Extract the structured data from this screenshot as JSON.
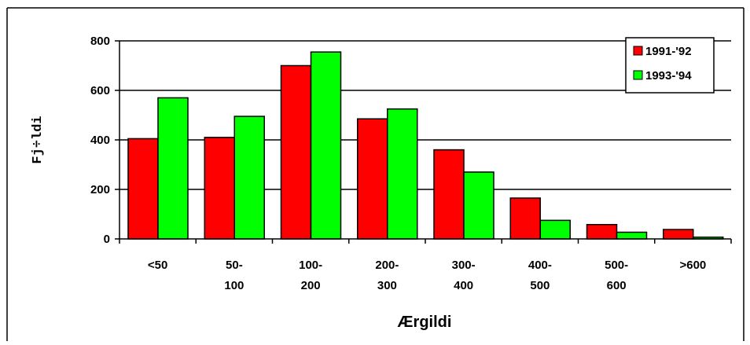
{
  "chart_data": {
    "type": "bar",
    "xlabel": "Ærgildi",
    "ylabel": "Fj÷ldi",
    "ylim": [
      0,
      800
    ],
    "yticks": [
      0,
      200,
      400,
      600,
      800
    ],
    "grid": true,
    "legend_position": "top-right",
    "categories": [
      [
        "<50"
      ],
      [
        "50-",
        "100"
      ],
      [
        "100-",
        "200"
      ],
      [
        "200-",
        "300"
      ],
      [
        "300-",
        "400"
      ],
      [
        "400-",
        "500"
      ],
      [
        "500-",
        "600"
      ],
      [
        ">600"
      ]
    ],
    "series": [
      {
        "name": "1991-'92",
        "color": "#ff0000",
        "values": [
          405,
          410,
          700,
          485,
          360,
          165,
          58,
          38
        ]
      },
      {
        "name": "1993-'94",
        "color": "#00ff00",
        "values": [
          570,
          495,
          755,
          525,
          270,
          75,
          27,
          7
        ]
      }
    ]
  }
}
